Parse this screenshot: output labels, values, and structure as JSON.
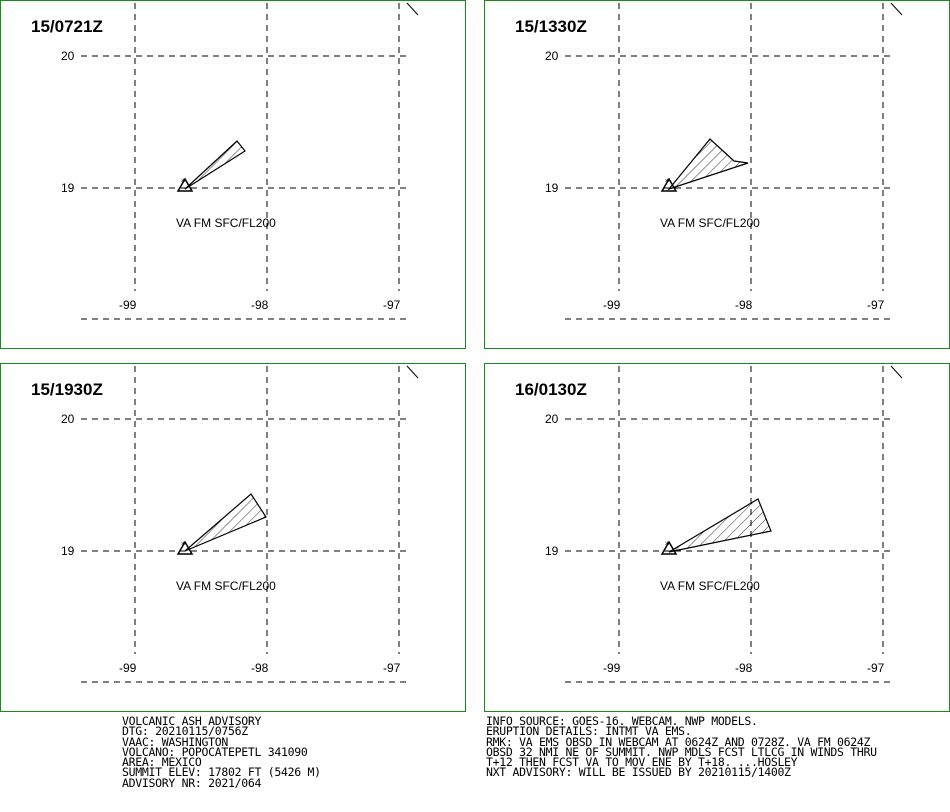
{
  "panels": [
    {
      "title": "15/0721Z",
      "va_label": "VA FM SFC/FL200",
      "lat_labels": [
        "20",
        "19"
      ],
      "lon_labels": [
        "-99",
        "-98",
        "-97"
      ]
    },
    {
      "title": "15/1330Z",
      "va_label": "VA FM SFC/FL200",
      "lat_labels": [
        "20",
        "19"
      ],
      "lon_labels": [
        "-99",
        "-98",
        "-97"
      ]
    },
    {
      "title": "15/1930Z",
      "va_label": "VA FM SFC/FL200",
      "lat_labels": [
        "20",
        "19"
      ],
      "lon_labels": [
        "-99",
        "-98",
        "-97"
      ]
    },
    {
      "title": "16/0130Z",
      "va_label": "VA FM SFC/FL200",
      "lat_labels": [
        "20",
        "19"
      ],
      "lon_labels": [
        "-99",
        "-98",
        "-97"
      ]
    }
  ],
  "advisory_left": [
    "VOLCANIC ASH ADVISORY",
    "DTG: 20210115/0756Z",
    "VAAC: WASHINGTON",
    "VOLCANO: POPOCATEPETL 341090",
    "AREA: MEXICO",
    "SUMMIT ELEV: 17802 FT (5426 M)",
    "ADVISORY NR: 2021/064"
  ],
  "advisory_right": [
    "INFO SOURCE: GOES-16. WEBCAM. NWP MODELS.",
    "ERUPTION DETAILS: INTMT VA EMS.",
    "RMK: VA EMS OBSD IN WEBCAM AT 0624Z AND 0728Z. VA FM 0624Z",
    "OBSD 32 NMI NE OF SUMMIT. NWP MDLS FCST LTLCG IN WINDS THRU",
    "T+12 THEN FCST VA TO MOV ENE BY T+18. ...HOSLEY",
    "NXT ADVISORY: WILL BE ISSUED BY 20210115/1400Z"
  ],
  "colors": {
    "panel_border": "#1a8a1a",
    "grid": "#000000",
    "plume": "#000000"
  }
}
